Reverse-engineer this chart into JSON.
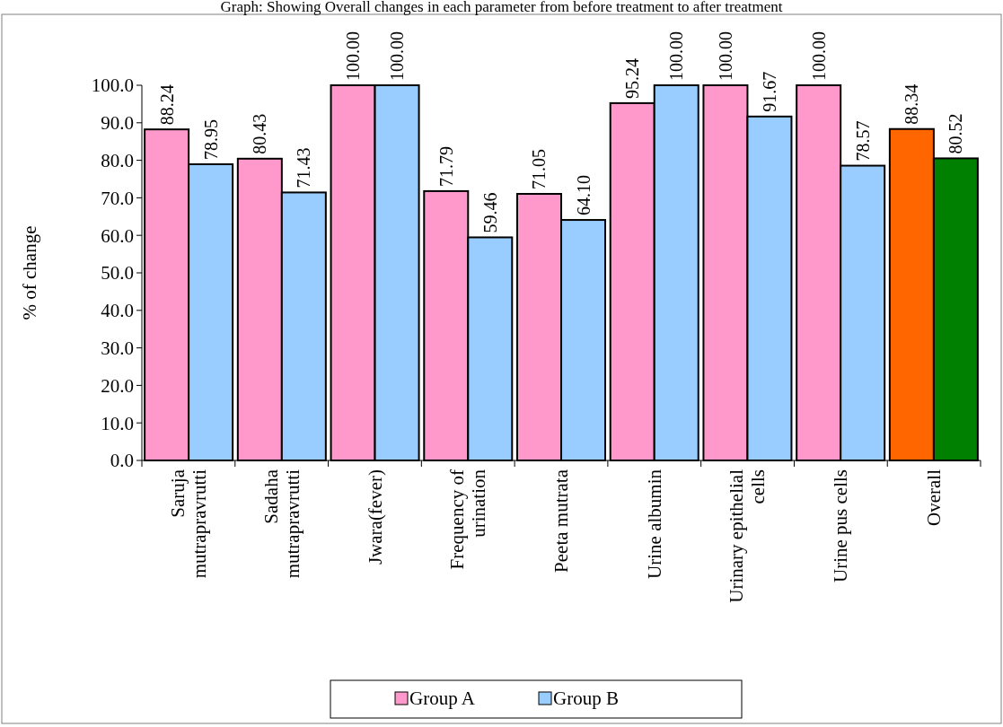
{
  "chart_data": {
    "type": "bar",
    "title": "Graph: Showing Overall changes in each parameter from before treatment to after treatment",
    "ylabel": "% of change",
    "categories": [
      "Saruja mutrapravrutti",
      "Sadaha mutrapravrutti",
      "Jwara(fever)",
      "Frequency of urination",
      "Peeta mutrata",
      "Urine albumin",
      "Urinary epithelial cells",
      "Urine pus cells",
      "Overall"
    ],
    "series": [
      {
        "name": "Group A",
        "color": "#ff99cc",
        "colors": [
          "#ff99cc",
          "#ff99cc",
          "#ff99cc",
          "#ff99cc",
          "#ff99cc",
          "#ff99cc",
          "#ff99cc",
          "#ff99cc",
          "#ff6600"
        ],
        "values": [
          88.24,
          80.43,
          100.0,
          71.79,
          71.05,
          95.24,
          100.0,
          100.0,
          88.34
        ],
        "value_labels": [
          "88.24",
          "80.43",
          "100.00",
          "71.79",
          "71.05",
          "95.24",
          "100.00",
          "100.00",
          "88.34"
        ]
      },
      {
        "name": "Group B",
        "color": "#99ccff",
        "colors": [
          "#99ccff",
          "#99ccff",
          "#99ccff",
          "#99ccff",
          "#99ccff",
          "#99ccff",
          "#99ccff",
          "#99ccff",
          "#008000"
        ],
        "values": [
          78.95,
          71.43,
          100.0,
          59.46,
          64.1,
          100.0,
          91.67,
          78.57,
          80.52
        ],
        "value_labels": [
          "78.95",
          "71.43",
          "100.00",
          "59.46",
          "64.10",
          "100.00",
          "91.67",
          "78.57",
          "80.52"
        ]
      }
    ],
    "ylim": [
      0,
      100
    ],
    "yticks": [
      {
        "value": 0,
        "label": "0.0"
      },
      {
        "value": 10,
        "label": "10.0"
      },
      {
        "value": 20,
        "label": "20.0"
      },
      {
        "value": 30,
        "label": "30.0"
      },
      {
        "value": 40,
        "label": "40.0"
      },
      {
        "value": 50,
        "label": "50.0"
      },
      {
        "value": 60,
        "label": "60.0"
      },
      {
        "value": 70,
        "label": "70.0"
      },
      {
        "value": 80,
        "label": "80.0"
      },
      {
        "value": 90,
        "label": "90.0"
      },
      {
        "value": 100,
        "label": "100.0"
      }
    ],
    "legend": "bottom"
  }
}
